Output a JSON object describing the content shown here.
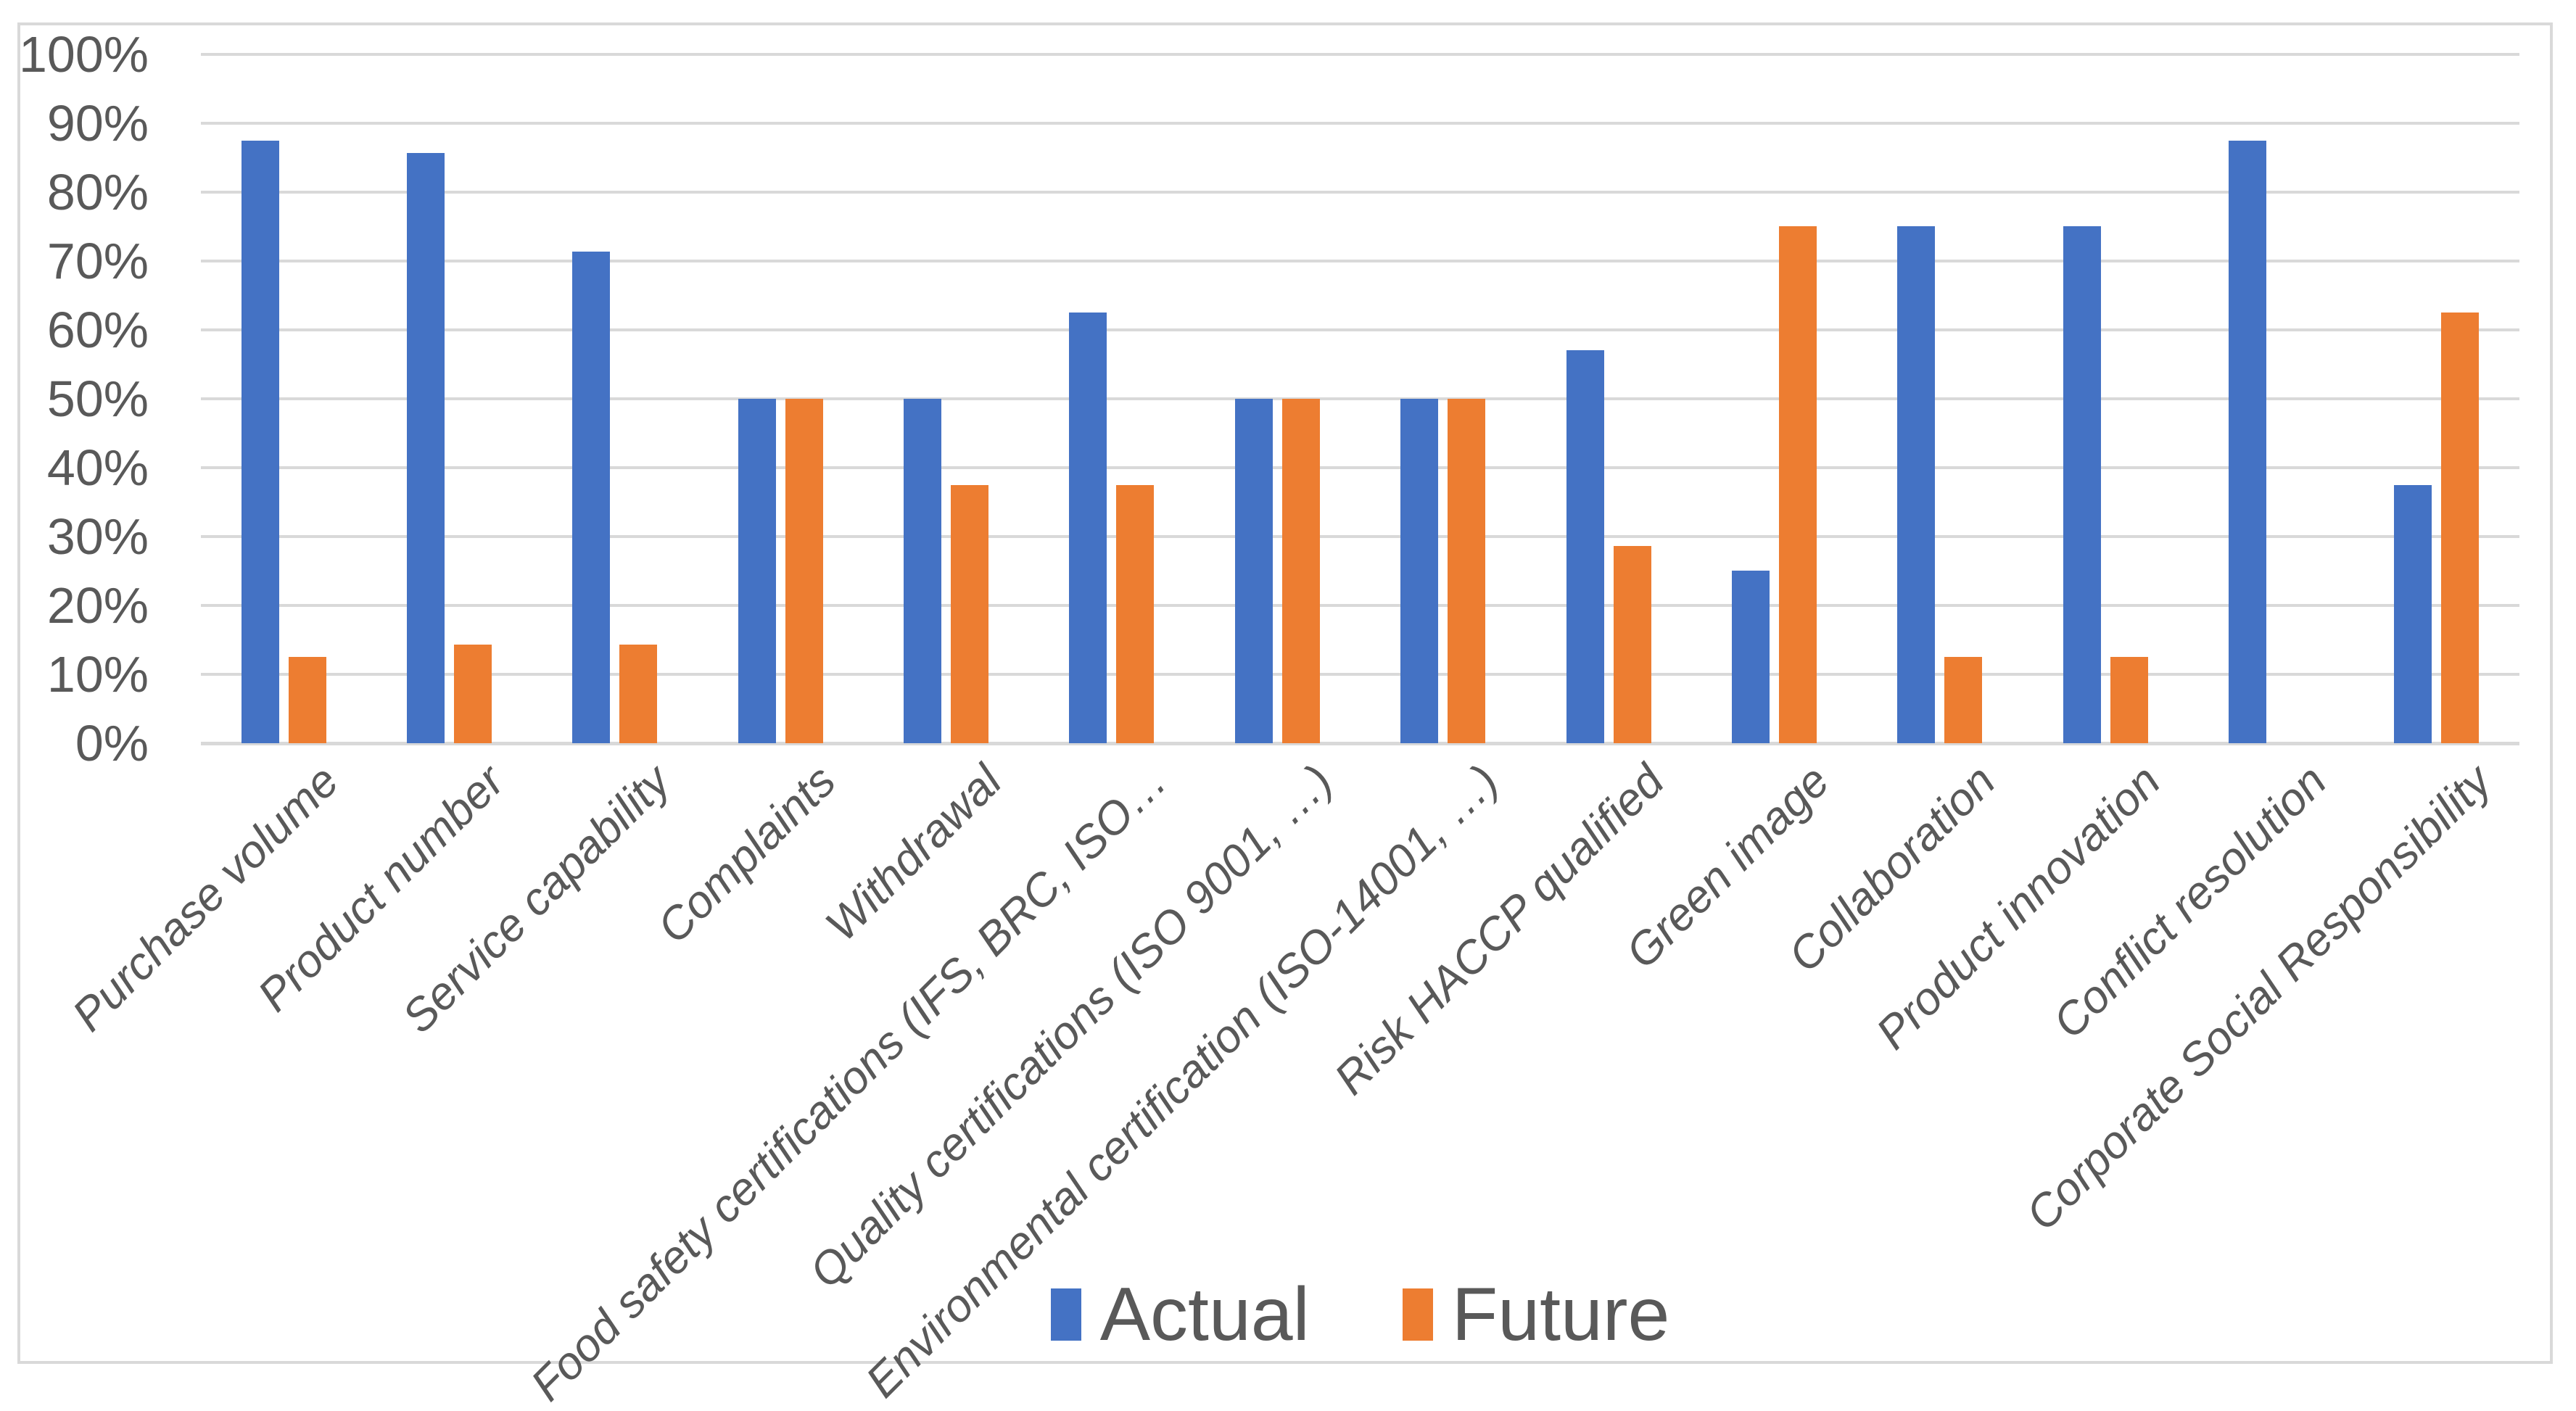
{
  "chart_data": {
    "type": "bar",
    "title": "",
    "xlabel": "",
    "ylabel": "",
    "categories": [
      "Purchase volume",
      "Product number",
      "Service capability",
      "Complaints",
      "Withdrawal",
      "Food safety certifications (IFS, BRC, ISO…",
      "Quality certifications (ISO 9001, …)",
      "Environmental certification (ISO-14001, …)",
      "Risk HACCP qualified",
      "Green image",
      "Collaboration",
      "Product innovation",
      "Conflict resolution",
      "Corporate Social Responsibility"
    ],
    "series": [
      {
        "name": "Actual",
        "color": "#4472C4",
        "values": [
          87.5,
          85.7,
          71.4,
          50,
          50,
          62.5,
          50,
          50,
          57.1,
          25,
          75,
          75,
          87.5,
          37.5
        ]
      },
      {
        "name": "Future",
        "color": "#ED7D31",
        "values": [
          12.5,
          14.3,
          14.3,
          50,
          37.5,
          37.5,
          50,
          50,
          28.6,
          75,
          12.5,
          12.5,
          0,
          62.5
        ]
      }
    ],
    "ylim": [
      0,
      100
    ],
    "yticks": [
      "0%",
      "10%",
      "20%",
      "30%",
      "40%",
      "50%",
      "60%",
      "70%",
      "80%",
      "90%",
      "100%"
    ],
    "grid": true,
    "legend_position": "bottom-center",
    "colors": {
      "gridline": "#D9D9D9",
      "frame_border": "#D9D9D9",
      "axis_text": "#595959",
      "background": "#FFFFFF"
    }
  }
}
